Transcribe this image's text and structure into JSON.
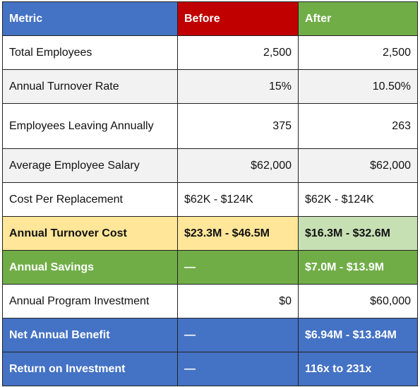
{
  "colors": {
    "header_metric": "#4472c4",
    "header_before": "#c00000",
    "header_after": "#70ad47",
    "stripe": "#f2f2f2",
    "turnover_cost_before": "#ffe699",
    "turnover_cost_after": "#c6e0b4",
    "savings": "#70ad47",
    "benefit": "#4472c4"
  },
  "table": {
    "headers": [
      "Metric",
      "Before",
      "After"
    ],
    "rows": [
      {
        "metric": "Total Employees",
        "before": "2,500",
        "after": "2,500"
      },
      {
        "metric": "Annual Turnover Rate",
        "before": "15%",
        "after": "10.50%"
      },
      {
        "metric": "Employees Leaving Annually",
        "before": "375",
        "after": "263"
      },
      {
        "metric": "Average Employee Salary",
        "before": "$62,000",
        "after": "$62,000"
      },
      {
        "metric": "Cost Per Replacement",
        "before": "$62K - $124K",
        "after": "$62K - $124K"
      },
      {
        "metric": "Annual Turnover Cost",
        "before": "$23.3M - $46.5M",
        "after": "$16.3M - $32.6M"
      },
      {
        "metric": "Annual Savings",
        "before": "—",
        "after": "$7.0M - $13.9M"
      },
      {
        "metric": "Annual Program Investment",
        "before": "$0",
        "after": "$60,000"
      },
      {
        "metric": "Net Annual Benefit",
        "before": "—",
        "after": "$6.94M - $13.84M"
      },
      {
        "metric": "Return on Investment",
        "before": "—",
        "after": "116x to 231x"
      }
    ]
  }
}
